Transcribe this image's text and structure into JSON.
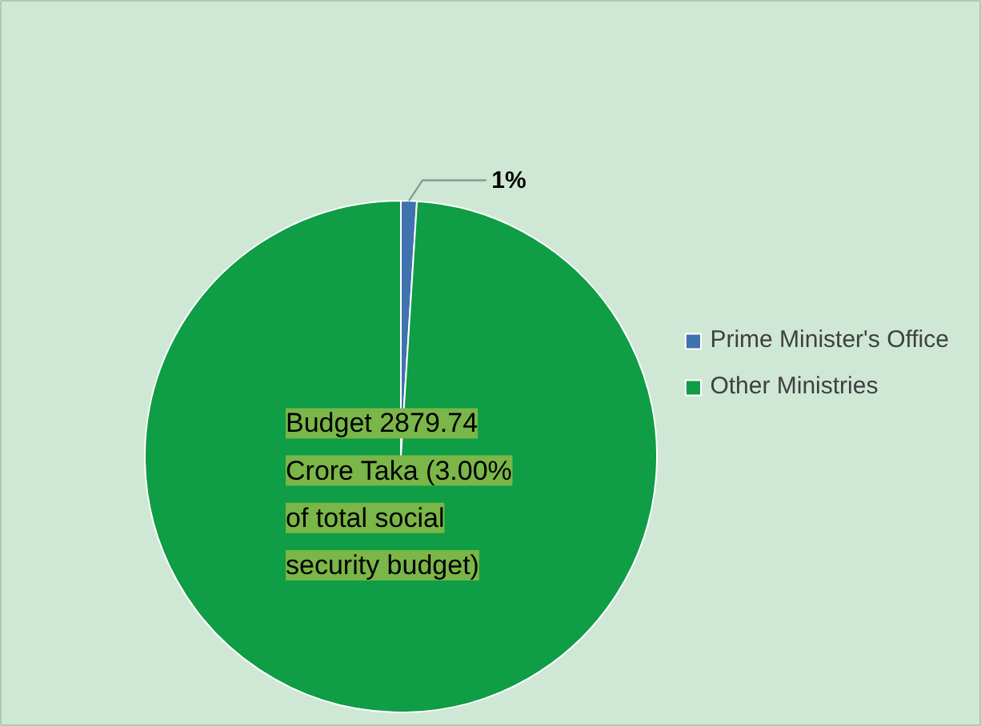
{
  "chart_data": {
    "type": "pie",
    "categories": [
      "Prime Minister's Office",
      "Other Ministries"
    ],
    "values": [
      1,
      99
    ],
    "colors": [
      "#3f72af",
      "#0f9d45"
    ],
    "value_labels": [
      "1%",
      null
    ],
    "legend": "right",
    "annotations": [
      "Budget 2879.74 Crore Taka (3.00% of total social security budget)"
    ]
  }
}
